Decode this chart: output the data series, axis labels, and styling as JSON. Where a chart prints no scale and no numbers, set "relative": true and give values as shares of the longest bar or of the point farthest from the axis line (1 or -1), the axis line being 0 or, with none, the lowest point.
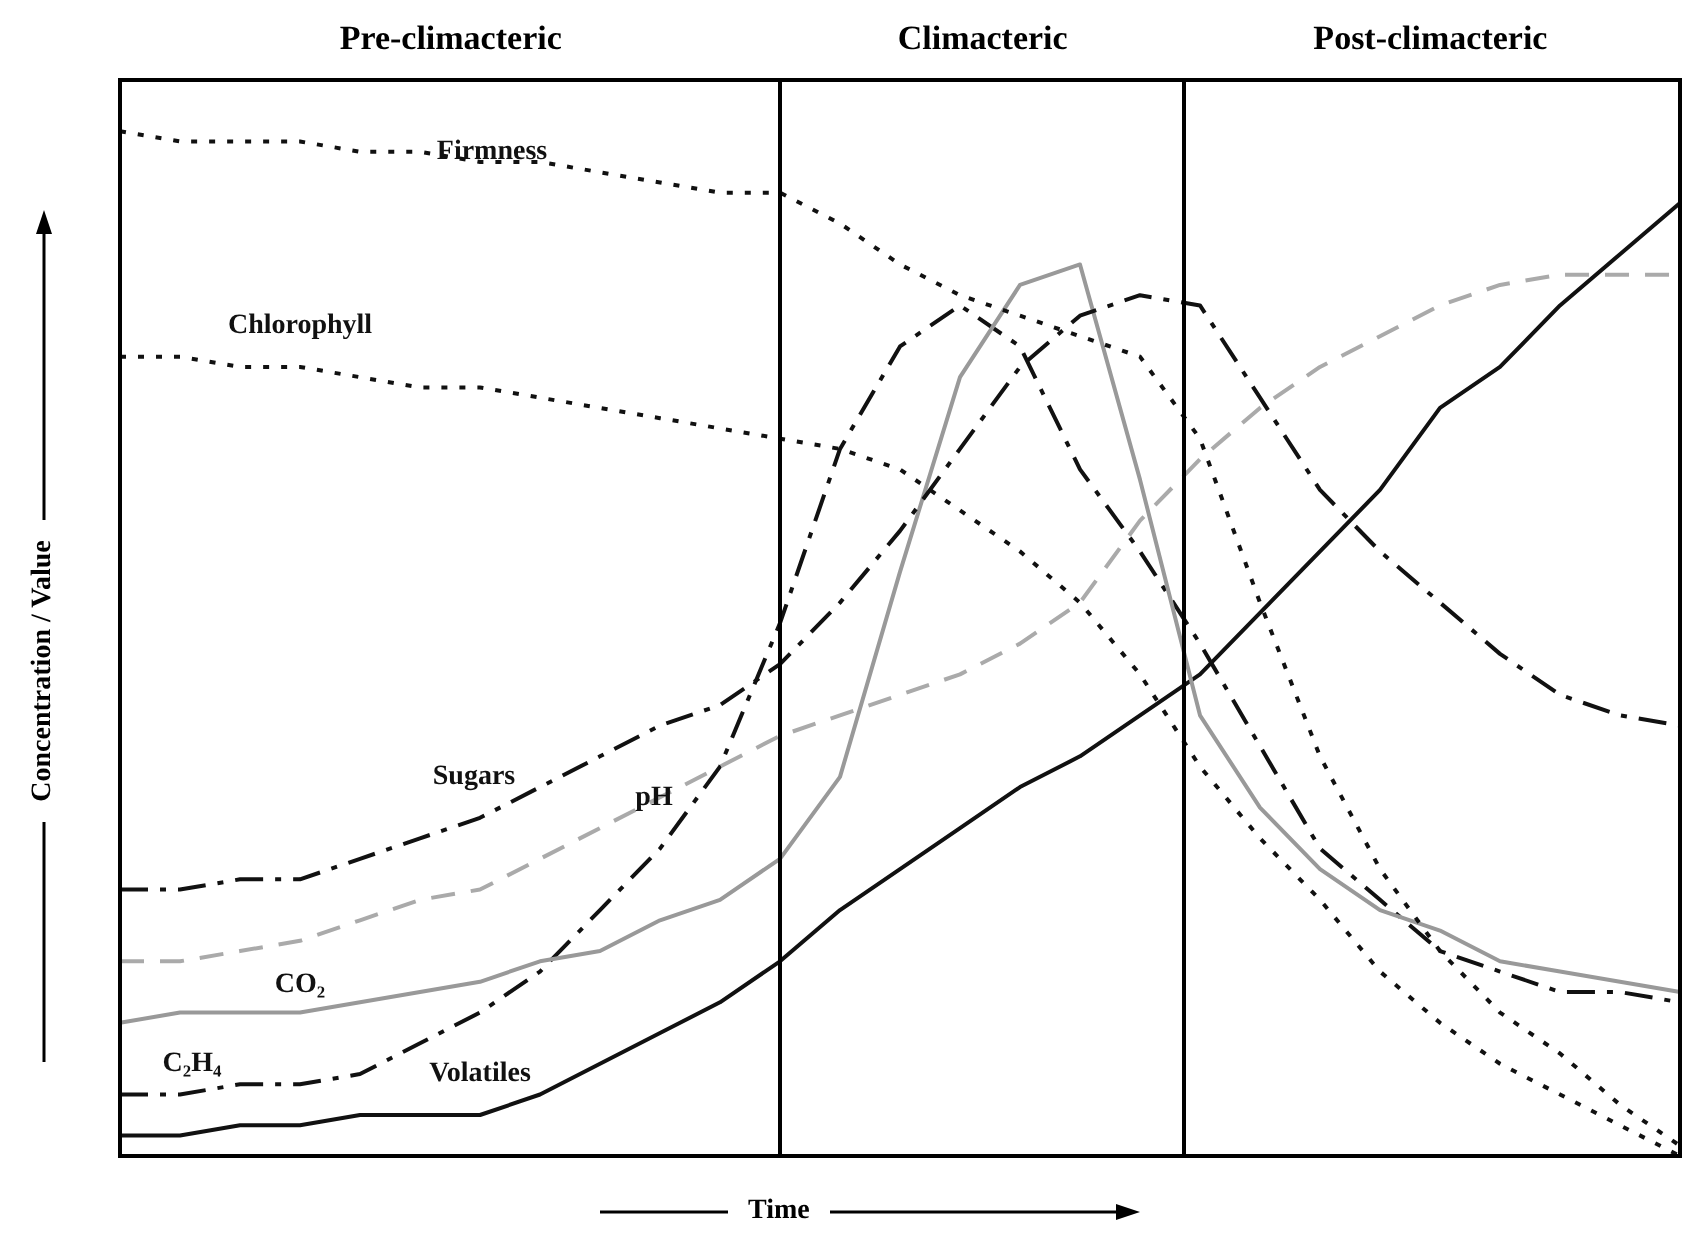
{
  "chart_data": {
    "type": "line",
    "xlabel": "Time",
    "ylabel": "Concentration / Value",
    "relative": true,
    "legend": false,
    "marker": "none",
    "annotations": [
      "Pre-climacteric",
      "Climacteric",
      "Post-climacteric"
    ],
    "categories": [
      null,
      null,
      null,
      null,
      null,
      null,
      null,
      null,
      null,
      null,
      null,
      null,
      null,
      null,
      null,
      null,
      null,
      null,
      null,
      null,
      null,
      null,
      null,
      null,
      null,
      null,
      null
    ],
    "series": [
      {
        "name": "Firmness",
        "color": "#111111",
        "line_style": "dotted",
        "values": [
          1.0,
          0.99,
          0.99,
          0.99,
          0.98,
          0.98,
          0.97,
          0.97,
          0.96,
          0.95,
          0.94,
          0.94,
          0.91,
          0.87,
          0.84,
          0.82,
          0.8,
          0.78,
          0.7,
          0.54,
          0.39,
          0.28,
          0.2,
          0.14,
          0.1,
          0.05,
          0.01
        ]
      },
      {
        "name": "Chlorophyll",
        "color": "#111111",
        "line_style": "dotted",
        "values": [
          0.78,
          0.78,
          0.77,
          0.77,
          0.76,
          0.75,
          0.75,
          0.74,
          0.73,
          0.72,
          0.71,
          0.7,
          0.69,
          0.67,
          0.63,
          0.59,
          0.54,
          0.47,
          0.38,
          0.31,
          0.25,
          0.18,
          0.13,
          0.09,
          0.06,
          0.03,
          0.0
        ]
      },
      {
        "name": "Sugars",
        "color": "#111111",
        "line_style": "dashed",
        "values": [
          0.26,
          0.26,
          0.27,
          0.27,
          0.29,
          0.31,
          0.33,
          0.36,
          0.39,
          0.42,
          0.44,
          0.48,
          0.54,
          0.61,
          0.69,
          0.77,
          0.82,
          0.84,
          0.83,
          0.74,
          0.65,
          0.59,
          0.54,
          0.49,
          0.45,
          0.43,
          0.42
        ]
      },
      {
        "name": "pH",
        "color": "#aaaaaa",
        "line_style": "dashed",
        "values": [
          0.19,
          0.19,
          0.2,
          0.21,
          0.23,
          0.25,
          0.26,
          0.29,
          0.32,
          0.35,
          0.38,
          0.41,
          0.43,
          0.45,
          0.47,
          0.5,
          0.54,
          0.62,
          0.68,
          0.73,
          0.77,
          0.8,
          0.83,
          0.85,
          0.86,
          0.86,
          0.86
        ]
      },
      {
        "name": "CO₂",
        "color": "#999999",
        "line_style": "solid",
        "values": [
          0.13,
          0.14,
          0.14,
          0.14,
          0.15,
          0.16,
          0.17,
          0.19,
          0.2,
          0.23,
          0.25,
          0.29,
          0.37,
          0.57,
          0.76,
          0.85,
          0.87,
          0.66,
          0.43,
          0.34,
          0.28,
          0.24,
          0.22,
          0.19,
          0.18,
          0.17,
          0.16
        ]
      },
      {
        "name": "C₂H₄",
        "color": "#111111",
        "line_style": "dashed",
        "values": [
          0.06,
          0.06,
          0.07,
          0.07,
          0.08,
          0.11,
          0.14,
          0.18,
          0.24,
          0.3,
          0.38,
          0.52,
          0.69,
          0.79,
          0.83,
          0.79,
          0.67,
          0.59,
          0.5,
          0.4,
          0.3,
          0.25,
          0.2,
          0.18,
          0.16,
          0.16,
          0.15
        ]
      },
      {
        "name": "Volatiles",
        "color": "#111111",
        "line_style": "solid",
        "values": [
          0.02,
          0.02,
          0.03,
          0.03,
          0.04,
          0.04,
          0.04,
          0.06,
          0.09,
          0.12,
          0.15,
          0.19,
          0.24,
          0.28,
          0.32,
          0.36,
          0.39,
          0.43,
          0.47,
          0.53,
          0.59,
          0.65,
          0.73,
          0.77,
          0.83,
          0.88,
          0.93
        ]
      }
    ]
  }
}
